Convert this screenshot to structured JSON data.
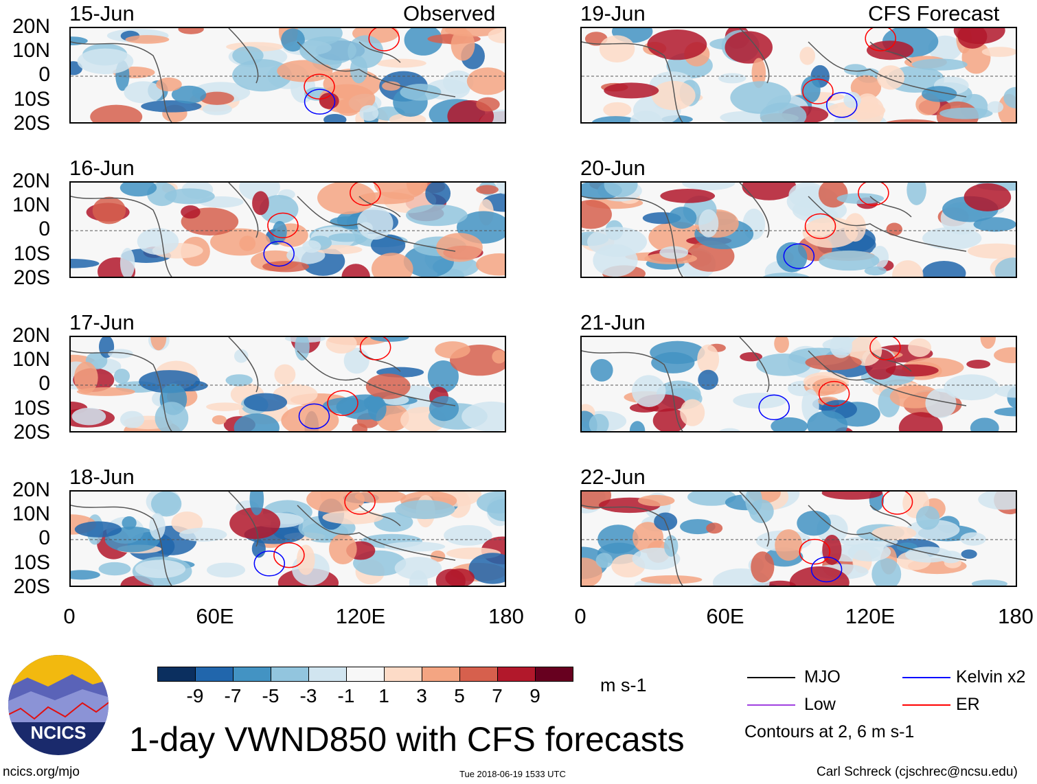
{
  "headers": {
    "left": "Observed",
    "right": "CFS Forecast"
  },
  "panels": {
    "left": [
      "15-Jun",
      "16-Jun",
      "17-Jun",
      "18-Jun"
    ],
    "right": [
      "19-Jun",
      "20-Jun",
      "21-Jun",
      "22-Jun"
    ]
  },
  "lat_labels": [
    "20N",
    "10N",
    "0",
    "10S",
    "20S"
  ],
  "lon_labels": [
    "0",
    "60E",
    "120E",
    "180"
  ],
  "colorbar": {
    "colors": [
      "#0b2f5f",
      "#2166ac",
      "#4393c3",
      "#92c5de",
      "#d1e5f0",
      "#f7f7f7",
      "#fddbc7",
      "#f4a582",
      "#d6604d",
      "#b2182b",
      "#67001f"
    ],
    "labels": [
      "-9",
      "-7",
      "-5",
      "-3",
      "-1",
      "1",
      "3",
      "5",
      "7",
      "9"
    ],
    "units": "m s-1"
  },
  "legend": {
    "mjo": {
      "label": "MJO",
      "color": "#000000"
    },
    "kelvin": {
      "label": "Kelvin x2",
      "color": "#0000ff"
    },
    "low": {
      "label": "Low",
      "color": "#a040e0"
    },
    "er": {
      "label": "ER",
      "color": "#ff0000"
    },
    "contours": "Contours at 2, 6 m s-1"
  },
  "title": "1-day VWND850 with CFS forecasts",
  "logo": "NCICS",
  "footer": {
    "left": "ncics.org/mjo",
    "center": "Tue 2018-06-19 1533 UTC",
    "right": "Carl Schreck (cjschrec@ncsu.edu)"
  }
}
